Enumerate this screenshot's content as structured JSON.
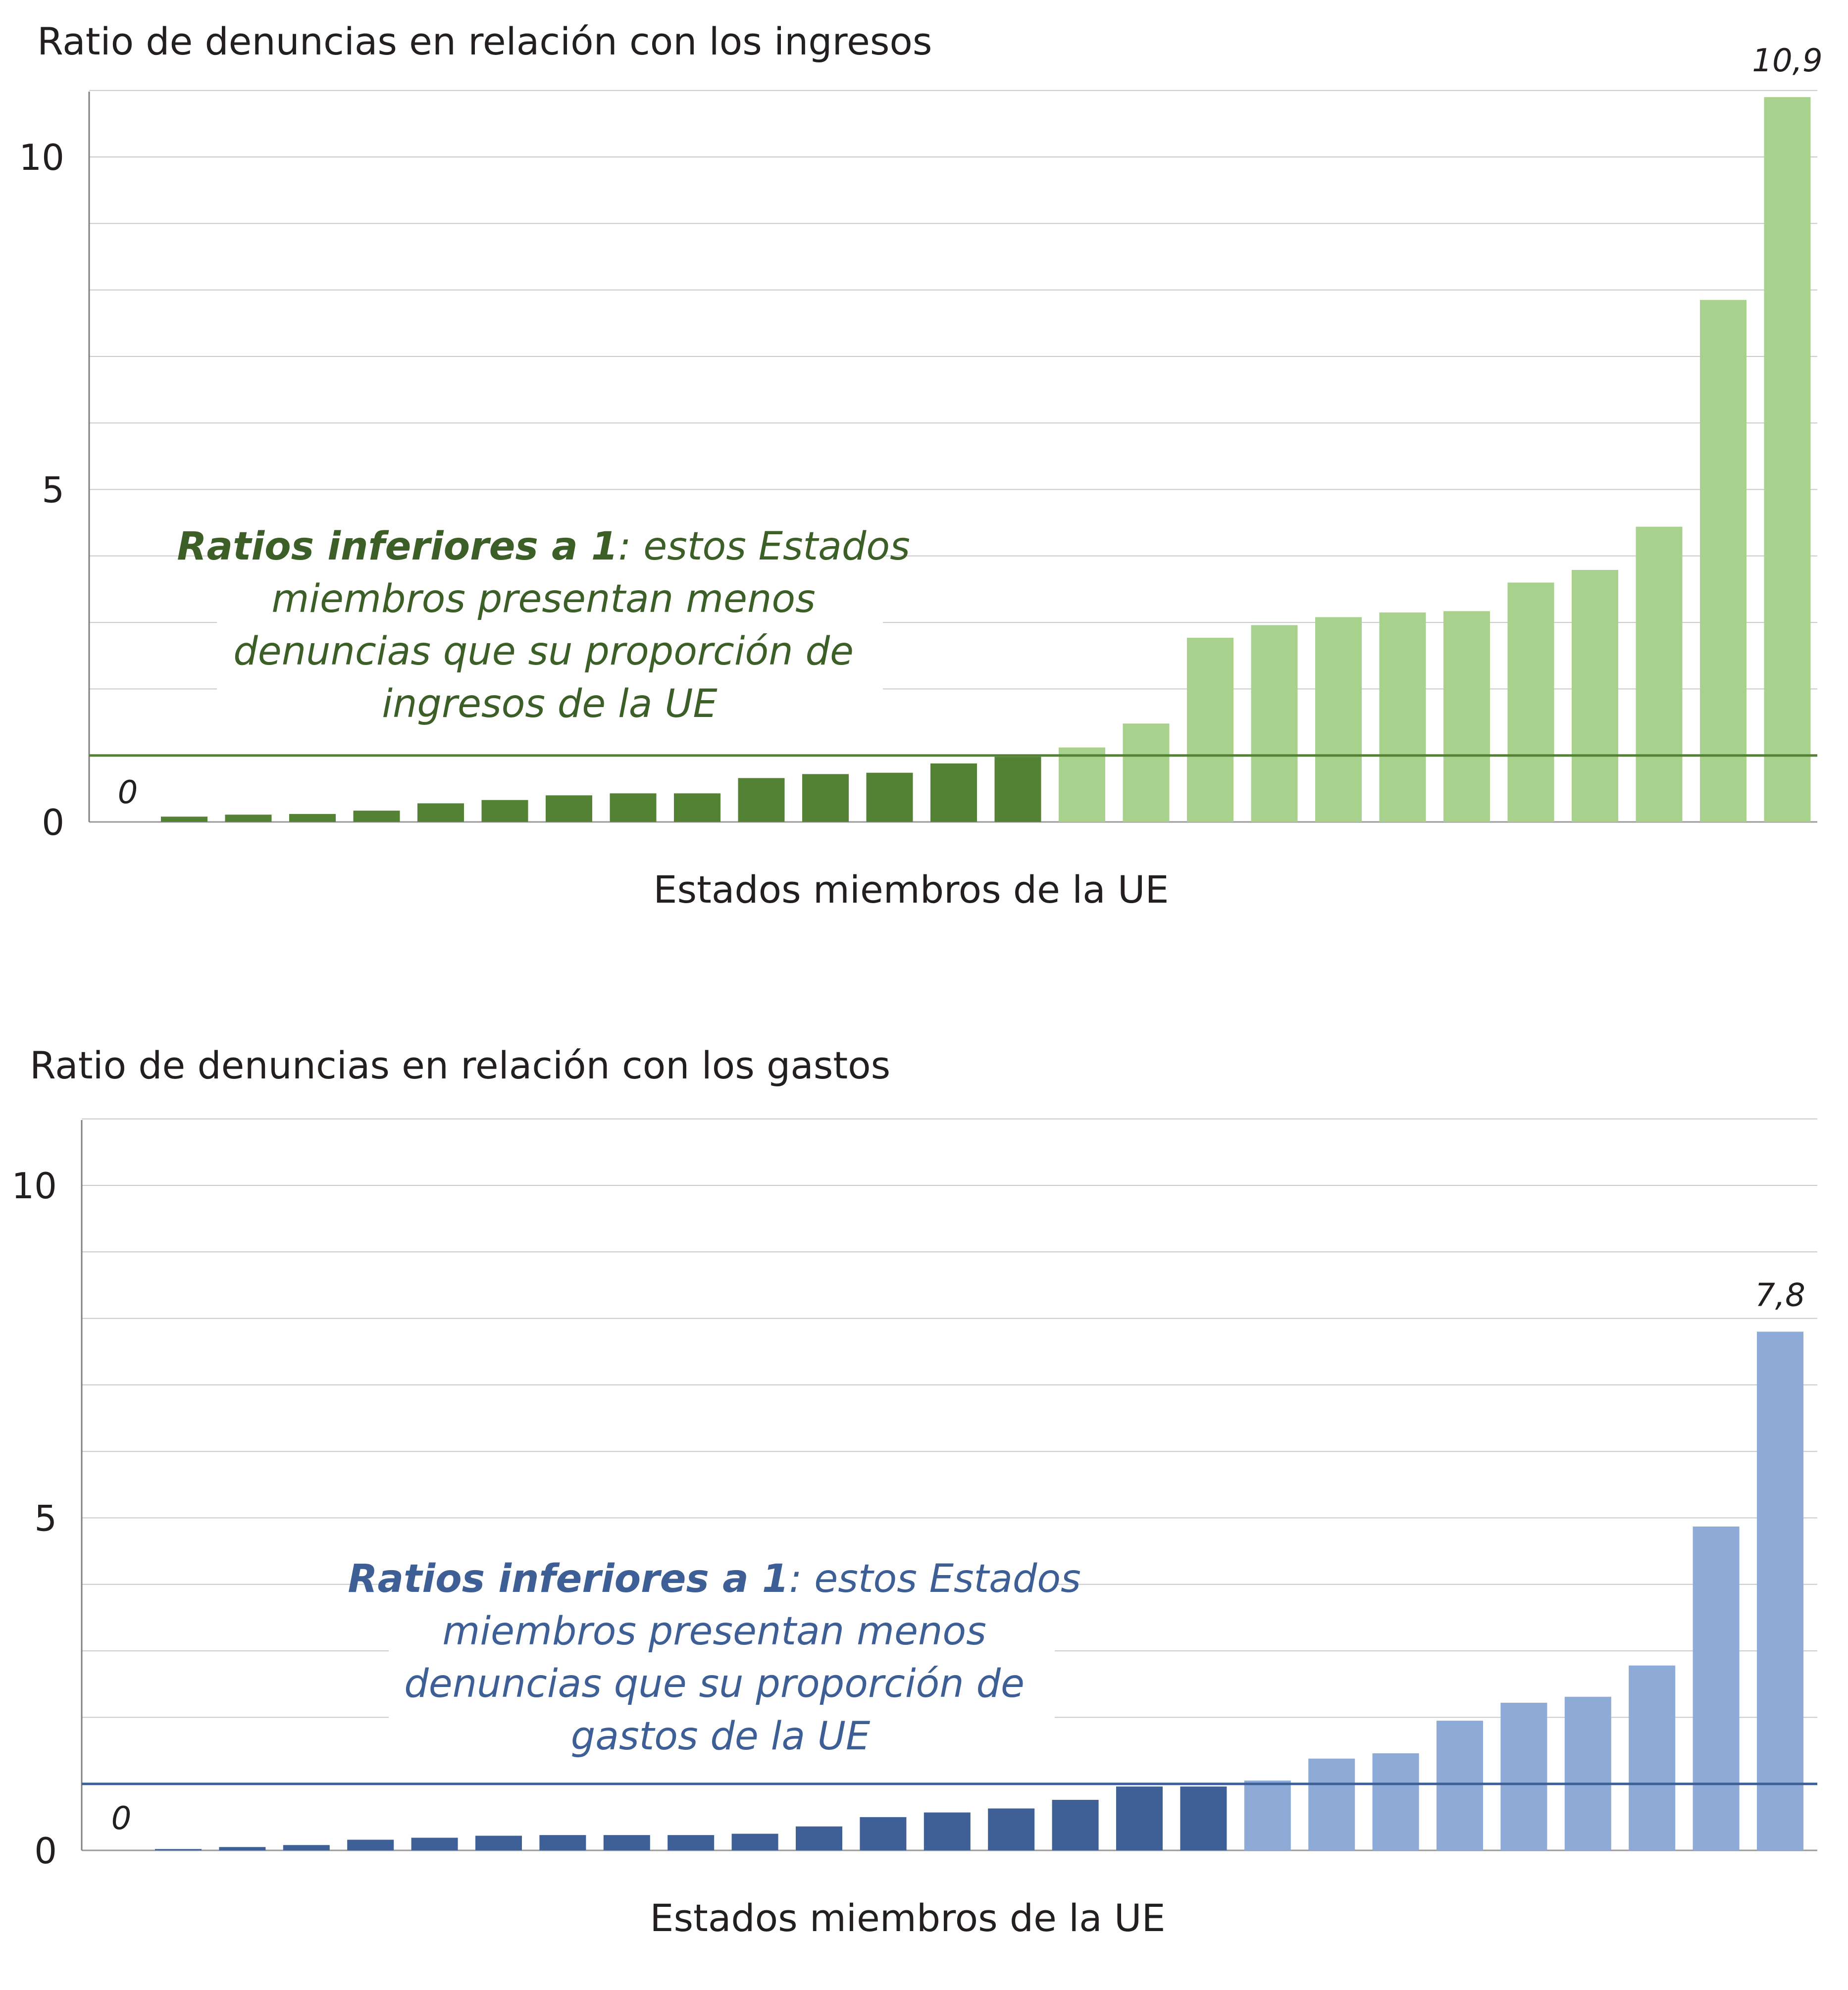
{
  "chart_data": [
    {
      "type": "bar",
      "title": "Ratio de denuncias en relación con los ingresos",
      "xlabel": "Estados miembros de la UE",
      "ylabel": "",
      "ylim": [
        0,
        11
      ],
      "yticks": [
        0,
        5,
        10
      ],
      "gridlines": true,
      "reference_line": 1,
      "zero_label": "0",
      "max_label": "10,9",
      "values": [
        0,
        0.08,
        0.11,
        0.12,
        0.17,
        0.28,
        0.33,
        0.4,
        0.43,
        0.43,
        0.66,
        0.72,
        0.74,
        0.88,
        0.98,
        1.12,
        1.48,
        2.77,
        2.96,
        3.08,
        3.15,
        3.17,
        3.6,
        3.79,
        4.44,
        7.85,
        10.9
      ],
      "colors": {
        "below": "#548235",
        "above": "#a9d18e",
        "refline": "#548235",
        "annotation": "#3b5f26"
      },
      "annotation": {
        "bold": "Ratios inferiores a 1",
        "rest": ": estos Estados",
        "line2": "miembros presentan menos",
        "line3": "denuncias que su proporción de",
        "line4": "ingresos de la UE"
      }
    },
    {
      "type": "bar",
      "title": "Ratio de denuncias en relación con los gastos",
      "xlabel": "Estados miembros de la UE",
      "ylabel": "",
      "ylim": [
        0,
        11
      ],
      "yticks": [
        0,
        5,
        10
      ],
      "gridlines": true,
      "reference_line": 1,
      "zero_label": "0",
      "max_label": "7,8",
      "values": [
        0,
        0.02,
        0.05,
        0.08,
        0.16,
        0.19,
        0.22,
        0.23,
        0.23,
        0.23,
        0.25,
        0.36,
        0.5,
        0.57,
        0.63,
        0.76,
        0.96,
        0.96,
        1.05,
        1.38,
        1.46,
        1.95,
        2.22,
        2.31,
        2.78,
        4.87,
        7.8
      ],
      "colors": {
        "below": "#3e6096",
        "above": "#8eaad6",
        "refline": "#3e6096",
        "annotation": "#3e5f95"
      },
      "annotation": {
        "bold": "Ratios inferiores a 1",
        "rest": ": estos Estados",
        "line2": "miembros presentan menos",
        "line3": "denuncias que su proporción de",
        "line4": "gastos de la UE"
      }
    }
  ]
}
